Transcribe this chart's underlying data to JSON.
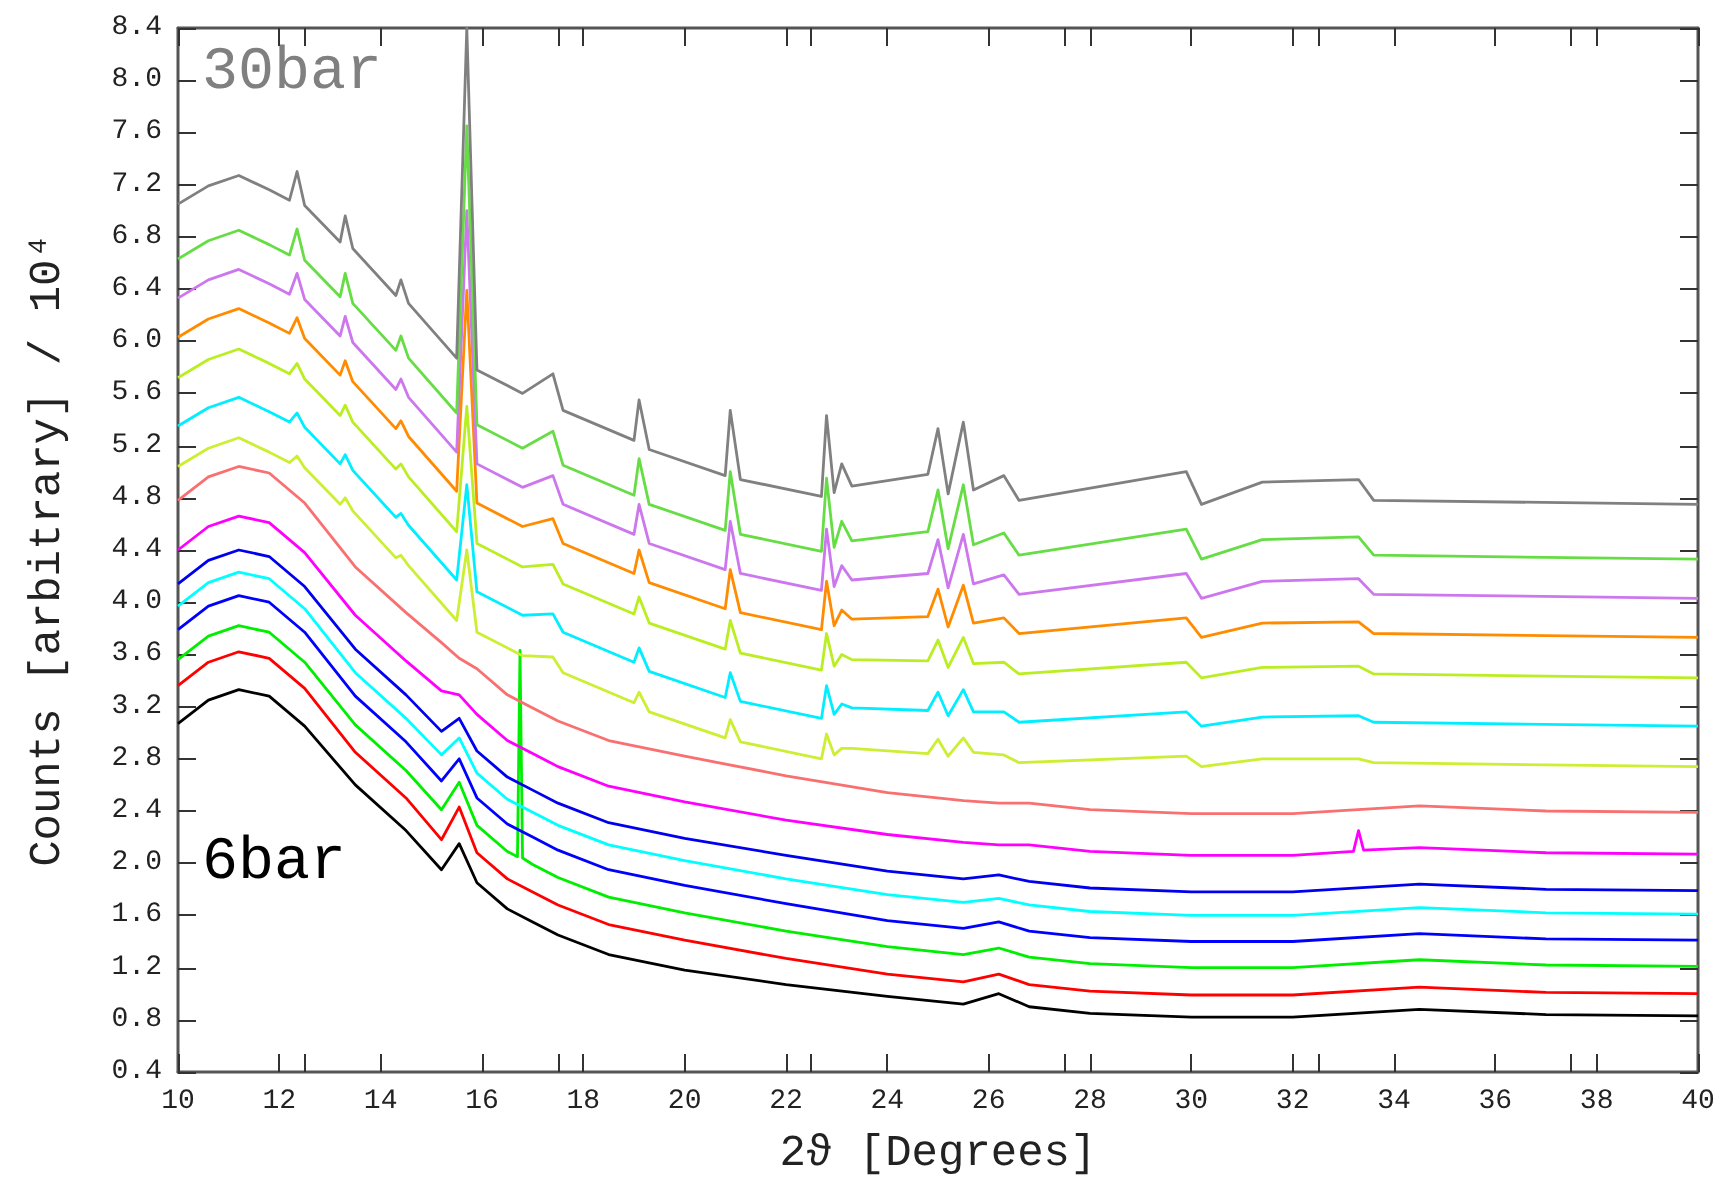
{
  "chart_data": {
    "type": "line",
    "xlabel": "2ϑ [Degrees]",
    "ylabel": "Counts [arbitrary] / 10⁴",
    "xlim": [
      10,
      40
    ],
    "xticks": [
      10,
      12,
      14,
      16,
      18,
      20,
      22,
      24,
      26,
      28,
      30,
      32,
      34,
      36,
      38,
      40
    ],
    "ylim": [
      0.4,
      8.4
    ],
    "yticks": [
      0.4,
      0.8,
      1.2,
      1.6,
      {
        "value": 2,
        "label": "2.0"
      },
      2.4,
      2.8,
      3.2,
      3.6,
      {
        "value": 4,
        "label": "4.0"
      },
      4.4,
      4.8,
      5.2,
      5.6,
      {
        "value": 6,
        "label": "6.0"
      },
      6.4,
      6.8,
      7.2,
      7.6,
      {
        "value": 8,
        "label": "8.0"
      },
      8.4
    ],
    "grid": false,
    "legend": false,
    "series": [
      {
        "name": "6bar",
        "color": "#000000",
        "x": [
          10,
          10.6,
          11.2,
          11.8,
          12.5,
          13.5,
          14.5,
          15.2,
          15.55,
          15.9,
          16.5,
          17.0,
          17.5,
          18.5,
          20,
          22,
          24,
          25.5,
          26.2,
          26.8,
          28,
          30,
          32,
          34.5,
          37,
          40
        ],
        "values": [
          3.07,
          3.25,
          3.33,
          3.28,
          3.05,
          2.6,
          2.25,
          1.95,
          2.15,
          1.85,
          1.65,
          1.55,
          1.45,
          1.3,
          1.18,
          1.07,
          0.98,
          0.92,
          1.0,
          0.9,
          0.85,
          0.82,
          0.82,
          0.88,
          0.84,
          0.83
        ]
      },
      {
        "color": "#ff0000",
        "x": [
          10,
          10.6,
          11.2,
          11.8,
          12.5,
          13.5,
          14.5,
          15.2,
          15.55,
          15.9,
          16.5,
          17.0,
          17.5,
          18.5,
          20,
          22,
          24,
          25.5,
          26.2,
          26.8,
          28,
          30,
          32,
          34.5,
          37,
          40
        ],
        "values": [
          3.36,
          3.54,
          3.62,
          3.57,
          3.34,
          2.85,
          2.5,
          2.18,
          2.43,
          2.08,
          1.88,
          1.78,
          1.68,
          1.53,
          1.41,
          1.27,
          1.15,
          1.09,
          1.15,
          1.07,
          1.02,
          0.99,
          0.99,
          1.05,
          1.01,
          1.0
        ]
      },
      {
        "color": "#00ee00",
        "x": [
          10,
          10.6,
          11.2,
          11.8,
          12.5,
          13.5,
          14.5,
          15.2,
          15.55,
          15.9,
          16.5,
          16.7,
          16.75,
          16.8,
          17.0,
          17.5,
          18.5,
          20,
          22,
          24,
          25.5,
          26.2,
          26.8,
          28,
          30,
          32,
          34.5,
          37,
          40
        ],
        "values": [
          3.56,
          3.74,
          3.82,
          3.77,
          3.54,
          3.06,
          2.71,
          2.41,
          2.62,
          2.29,
          2.09,
          2.05,
          3.63,
          2.04,
          1.99,
          1.89,
          1.74,
          1.62,
          1.48,
          1.36,
          1.3,
          1.35,
          1.28,
          1.23,
          1.2,
          1.2,
          1.26,
          1.22,
          1.21
        ]
      },
      {
        "color": "#0000ff",
        "x": [
          10,
          10.6,
          11.2,
          11.8,
          12.5,
          13.5,
          14.5,
          15.2,
          15.55,
          15.9,
          16.5,
          17.0,
          17.5,
          18.5,
          20,
          22,
          24,
          25.5,
          26.2,
          26.8,
          28,
          30,
          32,
          34.5,
          37,
          40
        ],
        "values": [
          3.79,
          3.97,
          4.05,
          4.0,
          3.77,
          3.28,
          2.93,
          2.63,
          2.8,
          2.5,
          2.3,
          2.2,
          2.1,
          1.95,
          1.83,
          1.69,
          1.56,
          1.5,
          1.55,
          1.48,
          1.43,
          1.4,
          1.4,
          1.46,
          1.42,
          1.41
        ]
      },
      {
        "color": "#00ffff",
        "x": [
          10,
          10.6,
          11.2,
          11.8,
          12.5,
          13.5,
          14.5,
          15.2,
          15.55,
          15.9,
          16.5,
          17.0,
          17.5,
          18.5,
          20,
          22,
          24,
          25.5,
          26.2,
          26.8,
          28,
          30,
          32,
          34.5,
          37,
          40
        ],
        "values": [
          3.97,
          4.15,
          4.23,
          4.18,
          3.95,
          3.46,
          3.11,
          2.83,
          2.96,
          2.69,
          2.49,
          2.39,
          2.29,
          2.14,
          2.02,
          1.88,
          1.76,
          1.7,
          1.73,
          1.68,
          1.63,
          1.6,
          1.6,
          1.66,
          1.62,
          1.61
        ]
      },
      {
        "color": "#0000ee",
        "x": [
          10,
          10.6,
          11.2,
          11.8,
          12.5,
          13.5,
          14.5,
          15.2,
          15.55,
          15.9,
          16.5,
          17.0,
          17.5,
          18.5,
          20,
          22,
          24,
          25.5,
          26.2,
          26.8,
          28,
          30,
          32,
          34.5,
          37,
          40
        ],
        "values": [
          4.14,
          4.32,
          4.4,
          4.35,
          4.12,
          3.64,
          3.29,
          3.01,
          3.11,
          2.86,
          2.66,
          2.56,
          2.46,
          2.31,
          2.19,
          2.06,
          1.94,
          1.88,
          1.91,
          1.86,
          1.81,
          1.78,
          1.78,
          1.84,
          1.8,
          1.79
        ]
      },
      {
        "color": "#ff00ff",
        "x": [
          10,
          10.6,
          11.2,
          11.8,
          12.5,
          13.5,
          14.5,
          15.2,
          15.55,
          15.9,
          16.5,
          17.0,
          17.5,
          18.5,
          20,
          22,
          24,
          25.5,
          26.2,
          26.8,
          28,
          30,
          32,
          33.2,
          33.3,
          33.4,
          34.5,
          37,
          40
        ],
        "values": [
          4.4,
          4.58,
          4.66,
          4.61,
          4.38,
          3.9,
          3.55,
          3.32,
          3.29,
          3.14,
          2.94,
          2.84,
          2.74,
          2.59,
          2.47,
          2.33,
          2.22,
          2.16,
          2.14,
          2.14,
          2.09,
          2.06,
          2.06,
          2.09,
          2.25,
          2.1,
          2.12,
          2.08,
          2.07
        ]
      },
      {
        "color": "#f87070",
        "x": [
          10,
          10.6,
          11.2,
          11.8,
          12.5,
          13.5,
          14.5,
          15.2,
          15.55,
          15.9,
          16.5,
          17.0,
          17.5,
          18.5,
          20,
          22,
          24,
          25.5,
          26.2,
          26.8,
          28,
          30,
          32,
          34.5,
          37,
          40
        ],
        "values": [
          4.78,
          4.96,
          5.04,
          4.99,
          4.76,
          4.27,
          3.92,
          3.69,
          3.57,
          3.49,
          3.29,
          3.19,
          3.09,
          2.94,
          2.82,
          2.67,
          2.54,
          2.48,
          2.46,
          2.46,
          2.41,
          2.38,
          2.38,
          2.44,
          2.4,
          2.39
        ]
      },
      {
        "color": "#ccee33",
        "x": [
          10,
          10.6,
          11.2,
          11.8,
          12.2,
          12.35,
          12.5,
          13.2,
          13.3,
          13.45,
          14.3,
          14.4,
          14.55,
          15.5,
          15.7,
          15.9,
          16.8,
          17.4,
          17.6,
          19.0,
          19.1,
          19.3,
          20.8,
          20.9,
          21.1,
          22.7,
          22.8,
          22.95,
          23.1,
          23.3,
          24.8,
          25.0,
          25.2,
          25.5,
          25.7,
          26.3,
          26.6,
          29.9,
          30.2,
          31.4,
          33.3,
          33.6,
          40
        ],
        "values": [
          5.04,
          5.18,
          5.26,
          5.15,
          5.07,
          5.12,
          5.03,
          4.75,
          4.8,
          4.7,
          4.34,
          4.36,
          4.28,
          3.86,
          4.4,
          3.77,
          3.59,
          3.58,
          3.46,
          3.23,
          3.31,
          3.16,
          2.96,
          3.1,
          2.93,
          2.8,
          2.99,
          2.83,
          2.88,
          2.88,
          2.84,
          2.95,
          2.82,
          2.96,
          2.85,
          2.83,
          2.77,
          2.82,
          2.74,
          2.8,
          2.8,
          2.77,
          2.74
        ]
      },
      {
        "color": "#00eeff",
        "x": [
          10,
          10.6,
          11.2,
          11.8,
          12.2,
          12.35,
          12.5,
          13.2,
          13.3,
          13.45,
          14.3,
          14.4,
          14.55,
          15.5,
          15.7,
          15.9,
          16.8,
          17.4,
          17.6,
          19.0,
          19.1,
          19.3,
          20.8,
          20.9,
          21.1,
          22.7,
          22.8,
          22.95,
          23.1,
          23.3,
          24.8,
          25.0,
          25.2,
          25.5,
          25.7,
          26.3,
          26.6,
          29.9,
          30.2,
          31.4,
          33.3,
          33.6,
          40
        ],
        "values": [
          5.35,
          5.49,
          5.57,
          5.46,
          5.38,
          5.45,
          5.34,
          5.06,
          5.13,
          5.01,
          4.65,
          4.68,
          4.59,
          4.17,
          4.9,
          4.08,
          3.9,
          3.91,
          3.77,
          3.54,
          3.65,
          3.47,
          3.27,
          3.46,
          3.24,
          3.11,
          3.36,
          3.14,
          3.22,
          3.19,
          3.17,
          3.31,
          3.13,
          3.33,
          3.16,
          3.16,
          3.08,
          3.16,
          3.05,
          3.12,
          3.13,
          3.08,
          3.05
        ]
      },
      {
        "color": "#bbee22",
        "x": [
          10,
          10.6,
          11.2,
          11.8,
          12.2,
          12.35,
          12.5,
          13.2,
          13.3,
          13.45,
          14.3,
          14.4,
          14.55,
          15.5,
          15.7,
          15.9,
          16.8,
          17.4,
          17.6,
          19.0,
          19.1,
          19.3,
          20.8,
          20.9,
          21.1,
          22.7,
          22.8,
          22.95,
          23.1,
          23.3,
          24.8,
          25.0,
          25.2,
          25.5,
          25.7,
          26.3,
          26.6,
          29.9,
          30.2,
          31.4,
          33.3,
          33.6,
          40
        ],
        "values": [
          5.72,
          5.86,
          5.94,
          5.83,
          5.75,
          5.83,
          5.71,
          5.43,
          5.51,
          5.38,
          5.02,
          5.06,
          4.96,
          4.54,
          5.5,
          4.45,
          4.27,
          4.29,
          4.14,
          3.91,
          4.04,
          3.84,
          3.64,
          3.86,
          3.61,
          3.48,
          3.76,
          3.51,
          3.6,
          3.56,
          3.55,
          3.71,
          3.5,
          3.73,
          3.53,
          3.54,
          3.45,
          3.54,
          3.42,
          3.5,
          3.51,
          3.45,
          3.42
        ]
      },
      {
        "color": "#ff8c00",
        "x": [
          10,
          10.6,
          11.2,
          11.8,
          12.2,
          12.35,
          12.5,
          13.2,
          13.3,
          13.45,
          14.3,
          14.4,
          14.55,
          15.5,
          15.7,
          15.9,
          16.8,
          17.4,
          17.6,
          19.0,
          19.1,
          19.3,
          20.8,
          20.9,
          21.1,
          22.7,
          22.8,
          22.95,
          23.1,
          23.3,
          24.8,
          25.0,
          25.2,
          25.5,
          25.7,
          26.3,
          26.6,
          29.9,
          30.2,
          31.4,
          33.3,
          33.6,
          40
        ],
        "values": [
          6.03,
          6.17,
          6.25,
          6.14,
          6.06,
          6.18,
          6.02,
          5.74,
          5.85,
          5.69,
          5.33,
          5.39,
          5.27,
          4.85,
          6.39,
          4.76,
          4.58,
          4.64,
          4.45,
          4.22,
          4.4,
          4.15,
          3.95,
          4.25,
          3.92,
          3.79,
          4.16,
          3.82,
          3.94,
          3.87,
          3.89,
          4.1,
          3.81,
          4.13,
          3.84,
          3.88,
          3.76,
          3.88,
          3.73,
          3.84,
          3.85,
          3.76,
          3.73
        ]
      },
      {
        "color": "#cc77ee",
        "x": [
          10,
          10.6,
          11.2,
          11.8,
          12.2,
          12.35,
          12.5,
          13.2,
          13.3,
          13.45,
          14.3,
          14.4,
          14.55,
          15.5,
          15.7,
          15.9,
          16.8,
          17.4,
          17.6,
          19.0,
          19.1,
          19.3,
          20.8,
          20.9,
          21.1,
          22.7,
          22.8,
          22.95,
          23.1,
          23.3,
          24.8,
          25.0,
          25.2,
          25.5,
          25.7,
          26.3,
          26.6,
          29.9,
          30.2,
          31.4,
          33.3,
          33.6,
          40
        ],
        "values": [
          6.33,
          6.47,
          6.55,
          6.44,
          6.36,
          6.52,
          6.32,
          6.04,
          6.19,
          5.99,
          5.63,
          5.71,
          5.57,
          5.15,
          7.0,
          5.06,
          4.88,
          4.97,
          4.75,
          4.52,
          4.75,
          4.45,
          4.25,
          4.62,
          4.22,
          4.09,
          4.56,
          4.12,
          4.28,
          4.17,
          4.22,
          4.48,
          4.11,
          4.52,
          4.14,
          4.21,
          4.06,
          4.22,
          4.03,
          4.16,
          4.18,
          4.06,
          4.03
        ]
      },
      {
        "color": "#66dd44",
        "x": [
          10,
          10.6,
          11.2,
          11.8,
          12.2,
          12.35,
          12.5,
          13.2,
          13.3,
          13.45,
          14.3,
          14.4,
          14.55,
          15.5,
          15.7,
          15.9,
          16.8,
          17.4,
          17.6,
          19.0,
          19.1,
          19.3,
          20.8,
          20.9,
          21.1,
          22.7,
          22.8,
          22.95,
          23.1,
          23.3,
          24.8,
          25.0,
          25.2,
          25.5,
          25.7,
          26.3,
          26.6,
          29.9,
          30.2,
          31.4,
          33.3,
          33.6,
          40
        ],
        "values": [
          6.63,
          6.77,
          6.85,
          6.74,
          6.66,
          6.86,
          6.62,
          6.34,
          6.52,
          6.29,
          5.93,
          6.04,
          5.87,
          5.45,
          7.65,
          5.36,
          5.18,
          5.31,
          5.05,
          4.82,
          5.1,
          4.75,
          4.55,
          5.0,
          4.52,
          4.39,
          4.95,
          4.42,
          4.62,
          4.47,
          4.54,
          4.86,
          4.41,
          4.9,
          4.44,
          4.53,
          4.36,
          4.56,
          4.33,
          4.48,
          4.5,
          4.36,
          4.33
        ]
      },
      {
        "name": "30bar",
        "color": "#808080",
        "x": [
          10,
          10.6,
          11.2,
          11.8,
          12.2,
          12.35,
          12.5,
          13.2,
          13.3,
          13.45,
          14.3,
          14.4,
          14.55,
          15.5,
          15.7,
          15.9,
          16.8,
          17.4,
          17.6,
          19.0,
          19.1,
          19.3,
          20.8,
          20.9,
          21.1,
          22.7,
          22.8,
          22.95,
          23.1,
          23.3,
          24.8,
          25.0,
          25.2,
          25.5,
          25.7,
          26.3,
          26.6,
          29.9,
          30.2,
          31.4,
          33.3,
          33.6,
          40
        ],
        "values": [
          7.05,
          7.19,
          7.27,
          7.16,
          7.08,
          7.3,
          7.04,
          6.76,
          6.96,
          6.71,
          6.35,
          6.47,
          6.29,
          5.87,
          8.4,
          5.78,
          5.6,
          5.75,
          5.47,
          5.24,
          5.55,
          5.17,
          4.97,
          5.47,
          4.94,
          4.81,
          5.43,
          4.84,
          5.06,
          4.89,
          4.98,
          5.33,
          4.83,
          5.38,
          4.86,
          4.97,
          4.78,
          5.0,
          4.75,
          4.92,
          4.94,
          4.78,
          4.75
        ]
      }
    ]
  }
}
